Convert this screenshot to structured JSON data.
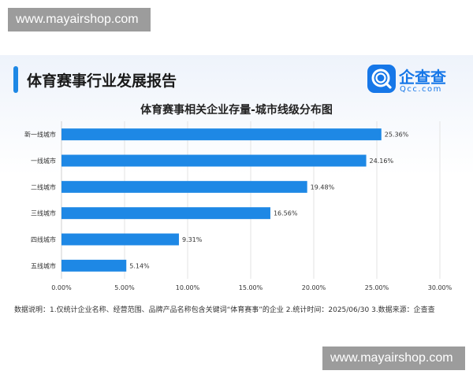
{
  "watermarks": {
    "top": "www.mayairshop.com",
    "bottom": "www.mayairshop.com"
  },
  "header": {
    "report_title": "体育赛事行业发展报告",
    "logo_name": "企查查",
    "logo_sub": "Qcc.com",
    "logo_icon": "qcc-logo-icon",
    "accent_color": "#1e88e5"
  },
  "chart_data": {
    "type": "bar",
    "orientation": "horizontal",
    "title": "体育赛事相关企业存量-城市线级分布图",
    "categories": [
      "新一线城市",
      "一线城市",
      "二线城市",
      "三线城市",
      "四线城市",
      "五线城市"
    ],
    "values": [
      25.36,
      24.16,
      19.48,
      16.56,
      9.31,
      5.14
    ],
    "value_labels": [
      "25.36%",
      "24.16%",
      "19.48%",
      "16.56%",
      "9.31%",
      "5.14%"
    ],
    "xlim": [
      0,
      30
    ],
    "xticks": [
      0,
      5,
      10,
      15,
      20,
      25,
      30
    ],
    "xtick_labels": [
      "0.00%",
      "5.00%",
      "10.00%",
      "15.00%",
      "20.00%",
      "25.00%",
      "30.00%"
    ],
    "xlabel": "",
    "ylabel": "",
    "grid": "vertical",
    "bar_color": "#1e88e5"
  },
  "footnote": "数据说明：1.仅统计企业名称、经营范围、品牌产品名称包含关键词“体育赛事”的企业  2.统计时间：2025/06/30  3.数据来源：企查查"
}
